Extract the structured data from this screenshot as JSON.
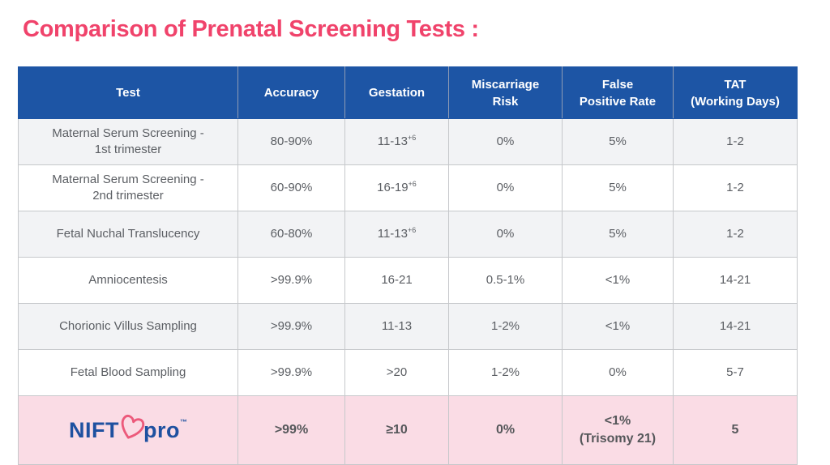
{
  "title": "Comparison of Prenatal Screening Tests :",
  "colors": {
    "title_pink": "#F0436B",
    "header_blue": "#1D55A5",
    "row_alt_gray": "#F2F3F5",
    "row_white": "#FFFFFF",
    "highlight_pink": "#FADCE5",
    "body_text": "#5B5E63",
    "border_gray": "#C6C8CB",
    "logo_blue": "#1E51A0",
    "logo_heart_pink": "#EC5A7B"
  },
  "table": {
    "columns": [
      "Test",
      "Accuracy",
      "Gestation",
      "Miscarriage\nRisk",
      "False\nPositive Rate",
      "TAT\n(Working Days)"
    ],
    "rows": [
      {
        "test": "Maternal Serum Screening -\n1st trimester",
        "accuracy": "80-90%",
        "gestation": "11-13",
        "gestation_sup": "+6",
        "miscarriage_risk": "0%",
        "false_positive_rate": "5%",
        "tat": "1-2"
      },
      {
        "test": "Maternal Serum Screening -\n2nd trimester",
        "accuracy": "60-90%",
        "gestation": "16-19",
        "gestation_sup": "+6",
        "miscarriage_risk": "0%",
        "false_positive_rate": "5%",
        "tat": "1-2"
      },
      {
        "test": "Fetal Nuchal Translucency",
        "accuracy": "60-80%",
        "gestation": "11-13",
        "gestation_sup": "+6",
        "miscarriage_risk": "0%",
        "false_positive_rate": "5%",
        "tat": "1-2"
      },
      {
        "test": "Amniocentesis",
        "accuracy": ">99.9%",
        "gestation": "16-21",
        "gestation_sup": "",
        "miscarriage_risk": "0.5-1%",
        "false_positive_rate": "<1%",
        "tat": "14-21"
      },
      {
        "test": "Chorionic Villus Sampling",
        "accuracy": ">99.9%",
        "gestation": "11-13",
        "gestation_sup": "",
        "miscarriage_risk": "1-2%",
        "false_positive_rate": "<1%",
        "tat": "14-21"
      },
      {
        "test": "Fetal Blood Sampling",
        "accuracy": ">99.9%",
        "gestation": ">20",
        "gestation_sup": "",
        "miscarriage_risk": "1-2%",
        "false_positive_rate": "0%",
        "tat": "5-7"
      }
    ],
    "highlight": {
      "brand_part1": "NIFT",
      "brand_part2": "pro",
      "brand_tm": "™",
      "accuracy": ">99%",
      "gestation": "≥10",
      "miscarriage_risk": "0%",
      "false_positive_rate": "<1%\n(Trisomy 21)",
      "tat": "5"
    }
  }
}
